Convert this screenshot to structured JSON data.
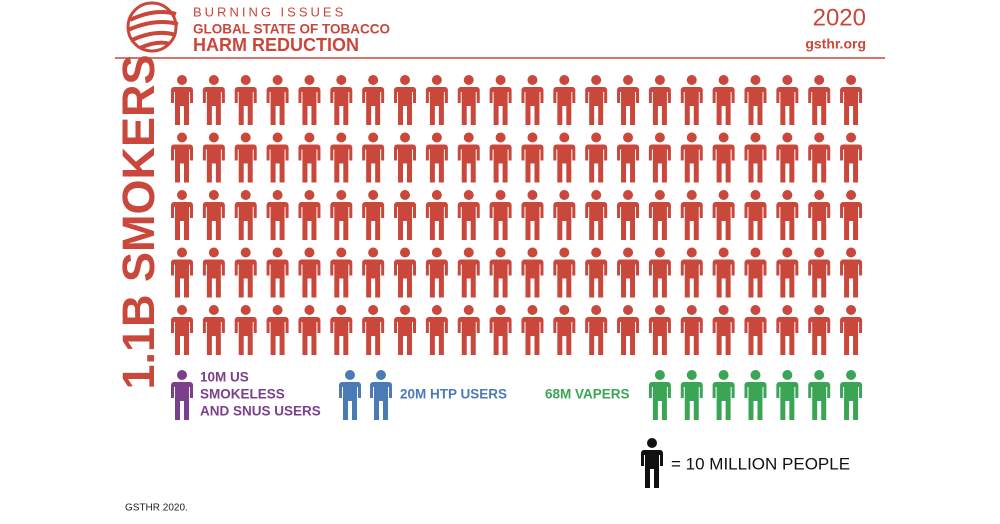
{
  "header": {
    "line1": "BURNING ISSUES",
    "line2": "GLOBAL STATE OF TOBACCO",
    "line3": "HARM REDUCTION",
    "year": "2020",
    "site": "gsthr.org"
  },
  "headline": "1.1B SMOKERS",
  "smokers": {
    "icons": 110,
    "color": "#c9473b"
  },
  "groups": [
    {
      "lines": [
        "10M US",
        "SMOKELESS",
        "AND SNUS USERS"
      ],
      "icons": 1,
      "color": "#7b3f8c"
    },
    {
      "lines": [
        "20M HTP USERS"
      ],
      "icons": 2,
      "color": "#4a7bb7"
    },
    {
      "lines": [
        "68M VAPERS"
      ],
      "icons": 7,
      "color": "#3aa655"
    }
  ],
  "legend": {
    "icons": 1,
    "label": "= 10 MILLION PEOPLE"
  },
  "footer": "GSTHR 2020."
}
